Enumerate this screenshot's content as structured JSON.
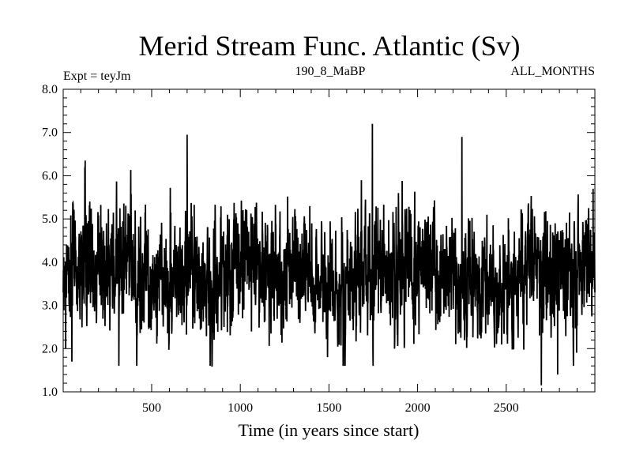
{
  "chart_data": {
    "type": "line",
    "title": "Merid Stream Func. Atlantic (Sv)",
    "subtitle_left": "Expt = teyJm",
    "subtitle_center": "190_8_MaBP",
    "subtitle_right": "ALL_MONTHS",
    "xlabel": "Time (in years since start)",
    "ylabel": "",
    "xlim": [
      1,
      3000
    ],
    "ylim": [
      1.0,
      8.0
    ],
    "xticks": [
      500,
      1000,
      1500,
      2000,
      2500
    ],
    "xtick_labels": [
      "500",
      "1000",
      "1500",
      "2000",
      "2500"
    ],
    "yticks": [
      1.0,
      2.0,
      3.0,
      4.0,
      5.0,
      6.0,
      7.0,
      8.0
    ],
    "ytick_labels": [
      "1.0",
      "2.0",
      "3.0",
      "4.0",
      "5.0",
      "6.0",
      "7.0",
      "8.0"
    ],
    "grid": false,
    "legend": "none",
    "series": [
      {
        "name": "Merid Stream Func. Atlantic",
        "color": "#000000",
        "n_points": 3000,
        "x_start": 1,
        "x_step": 1,
        "mean": 3.75,
        "std": 0.75,
        "notable_points": [
          {
            "x": 1,
            "y": 3.3
          },
          {
            "x": 15,
            "y": 2.0
          },
          {
            "x": 50,
            "y": 1.7
          },
          {
            "x": 125,
            "y": 6.35
          },
          {
            "x": 700,
            "y": 6.95
          },
          {
            "x": 1745,
            "y": 7.2
          },
          {
            "x": 2250,
            "y": 6.9
          },
          {
            "x": 2698,
            "y": 1.15
          },
          {
            "x": 2790,
            "y": 1.4
          },
          {
            "x": 2990,
            "y": 5.7
          },
          {
            "x": 3000,
            "y": 3.3
          }
        ]
      }
    ]
  }
}
